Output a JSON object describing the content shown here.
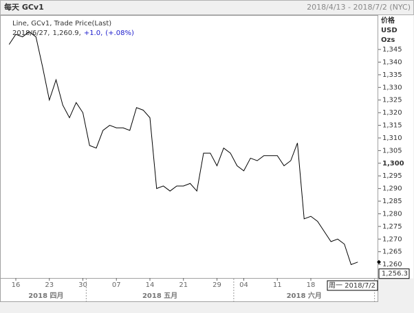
{
  "chart_data": {
    "type": "line",
    "header_title": "每天 GCv1",
    "header_range": "2018/4/13 - 2018/7/2 (NYC)",
    "axis_units": [
      "价格",
      "USD",
      "Ozs"
    ],
    "legend_title": "Line, GCv1, Trade Price(Last)",
    "legend_values": [
      {
        "text": "2018/6/27,",
        "color": "#333333"
      },
      {
        "text": "1,260.9,",
        "color": "#333333"
      },
      {
        "text": "+1.0,",
        "color": "#1a1acc"
      },
      {
        "text": "(+.08%)",
        "color": "#1a1acc"
      }
    ],
    "categories": [
      "2018/4/13",
      "2018/4/16",
      "2018/4/17",
      "2018/4/18",
      "2018/4/19",
      "2018/4/20",
      "2018/4/23",
      "2018/4/24",
      "2018/4/25",
      "2018/4/26",
      "2018/4/27",
      "2018/4/30",
      "2018/5/1",
      "2018/5/2",
      "2018/5/3",
      "2018/5/4",
      "2018/5/7",
      "2018/5/8",
      "2018/5/9",
      "2018/5/10",
      "2018/5/11",
      "2018/5/14",
      "2018/5/15",
      "2018/5/16",
      "2018/5/17",
      "2018/5/18",
      "2018/5/21",
      "2018/5/22",
      "2018/5/23",
      "2018/5/24",
      "2018/5/25",
      "2018/5/29",
      "2018/5/30",
      "2018/5/31",
      "2018/6/1",
      "2018/6/4",
      "2018/6/5",
      "2018/6/6",
      "2018/6/7",
      "2018/6/8",
      "2018/6/11",
      "2018/6/12",
      "2018/6/13",
      "2018/6/14",
      "2018/6/15",
      "2018/6/18",
      "2018/6/19",
      "2018/6/20",
      "2018/6/21",
      "2018/6/22",
      "2018/6/25",
      "2018/6/26",
      "2018/6/27",
      "2018/6/28",
      "2018/6/29",
      "2018/7/2"
    ],
    "series": [
      {
        "name": "GCv1",
        "color": "#000000",
        "values": [
          1347,
          1351,
          1350,
          1352,
          1350,
          1338,
          1325,
          1333,
          1323,
          1318,
          1324,
          1320,
          1307,
          1306,
          1313,
          1315,
          1314,
          1314,
          1313,
          1322,
          1321,
          1318,
          1290,
          1291,
          1289,
          1291,
          1291,
          1292,
          1289,
          1304,
          1304,
          1299,
          1306,
          1304,
          1299,
          1297,
          1302,
          1301,
          1303,
          1303,
          1303,
          1299,
          1301,
          1308,
          1278,
          1279,
          1277,
          1273,
          1269,
          1270,
          1268,
          1259.9,
          1260.9,
          null,
          null,
          null
        ]
      }
    ],
    "xticks": [
      {
        "value": "2018/4/16",
        "label": "16"
      },
      {
        "value": "2018/4/23",
        "label": "23"
      },
      {
        "value": "2018/4/30",
        "label": "30"
      },
      {
        "value": "2018/5/7",
        "label": "07"
      },
      {
        "value": "2018/5/14",
        "label": "14"
      },
      {
        "value": "2018/5/21",
        "label": "21"
      },
      {
        "value": "2018/5/29",
        "label": "29"
      },
      {
        "value": "2018/6/4",
        "label": "04"
      },
      {
        "value": "2018/6/11",
        "label": "11"
      },
      {
        "value": "2018/6/18",
        "label": "18"
      }
    ],
    "month_labels": [
      "2018 四月",
      "2018 五月",
      "2018 六月"
    ],
    "ylim": [
      1254.6,
      1358.6
    ],
    "yticks": [
      {
        "value": 1260,
        "label": "1,260"
      },
      {
        "value": 1265,
        "label": "1,265"
      },
      {
        "value": 1270,
        "label": "1,270"
      },
      {
        "value": 1275,
        "label": "1,275"
      },
      {
        "value": 1280,
        "label": "1,280"
      },
      {
        "value": 1285,
        "label": "1,285"
      },
      {
        "value": 1290,
        "label": "1,290"
      },
      {
        "value": 1295,
        "label": "1,295"
      },
      {
        "value": 1300,
        "label": "1,300"
      },
      {
        "value": 1305,
        "label": "1,305"
      },
      {
        "value": 1310,
        "label": "1,310"
      },
      {
        "value": 1315,
        "label": "1,315"
      },
      {
        "value": 1320,
        "label": "1,320"
      },
      {
        "value": 1325,
        "label": "1,325"
      },
      {
        "value": 1330,
        "label": "1,330"
      },
      {
        "value": 1335,
        "label": "1,335"
      },
      {
        "value": 1340,
        "label": "1,340"
      },
      {
        "value": 1345,
        "label": "1,345"
      }
    ],
    "bold_ytick": 1300,
    "last_price": {
      "value": 1256.3,
      "label": "1,256.3"
    },
    "cursor_label": "周一 2018/7/2"
  }
}
